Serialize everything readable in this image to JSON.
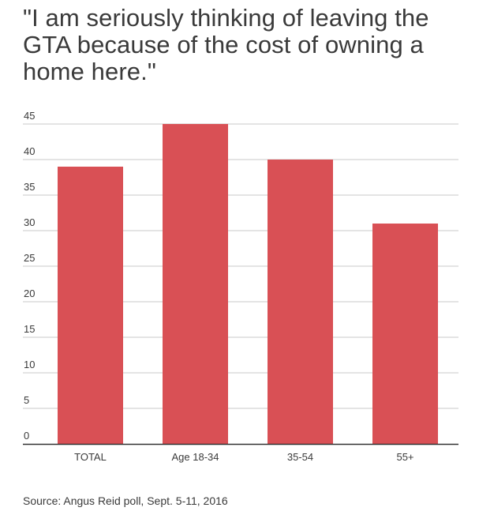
{
  "colors": {
    "bar": "#d95055",
    "grid": "#c8c8c8",
    "axis": "#333333",
    "text": "#3a3a3a"
  },
  "chart_data": {
    "type": "bar",
    "title": "\"I am seriously thinking of leaving the GTA because of the cost of owning a home here.\"",
    "categories": [
      "TOTAL",
      "Age 18-34",
      "35-54",
      "55+"
    ],
    "values": [
      39,
      45,
      40,
      31
    ],
    "ylim": [
      0,
      45
    ],
    "yticks": [
      0,
      5,
      10,
      15,
      20,
      25,
      30,
      35,
      40,
      45
    ],
    "grid": true,
    "legend": "none",
    "xlabel": "",
    "ylabel": "",
    "source": "Source: Angus Reid poll, Sept. 5-11, 2016"
  }
}
